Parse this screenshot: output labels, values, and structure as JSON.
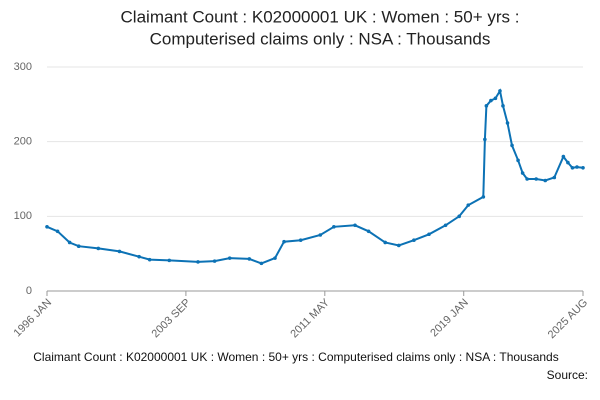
{
  "chart_data": {
    "type": "line",
    "title": "Claimant Count : K02000001 UK : Women : 50+ yrs :",
    "subtitle": "Computerised claims only : NSA : Thousands",
    "footer": "Claimant Count : K02000001 UK : Women : 50+ yrs : Computerised claims only : NSA : Thousands",
    "source": "Source:",
    "x": [
      "1996 JAN",
      "1996 AUG",
      "1997 APR",
      "1997 OCT",
      "1998 NOV",
      "2000 JAN",
      "2001 FEB",
      "2001 SEP",
      "2002 OCT",
      "2004 MAY",
      "2005 APR",
      "2006 FEB",
      "2007 MAR",
      "2007 NOV",
      "2008 AUG",
      "2009 FEB",
      "2010 JAN",
      "2011 FEB",
      "2011 NOV",
      "2013 JAN",
      "2013 OCT",
      "2014 SEP",
      "2015 JUN",
      "2016 APR",
      "2017 FEB",
      "2018 JAN",
      "2018 OCT",
      "2019 APR",
      "2020 FEB",
      "2020 MAR",
      "2020 APR",
      "2020 JUL",
      "2020 OCT",
      "2021 JAN",
      "2021 MAR",
      "2021 JUN",
      "2021 SEP",
      "2022 JAN",
      "2022 APR",
      "2022 JUL",
      "2023 JAN",
      "2023 JUL",
      "2024 JAN",
      "2024 JUL",
      "2024 OCT",
      "2025 JAN",
      "2025 APR",
      "2025 AUG"
    ],
    "series": [
      {
        "name": "Claimant Count",
        "color": "#0c72b5",
        "values": [
          86,
          80,
          65,
          60,
          57,
          53,
          46,
          42,
          41,
          39,
          40,
          44,
          43,
          37,
          44,
          66,
          68,
          75,
          86,
          88,
          80,
          65,
          61,
          68,
          76,
          88,
          100,
          115,
          126,
          203,
          248,
          255,
          258,
          268,
          248,
          225,
          195,
          175,
          158,
          150,
          150,
          148,
          152,
          180,
          172,
          165,
          166,
          165
        ]
      }
    ],
    "xlim": [
      "1996 JAN",
      "2025 AUG"
    ],
    "xticks": [
      "1996 JAN",
      "2003 SEP",
      "2011 MAY",
      "2019 JAN",
      "2025 AUG"
    ],
    "ylim": [
      0,
      300
    ],
    "yticks": [
      0,
      100,
      200,
      300
    ],
    "grid": true
  }
}
